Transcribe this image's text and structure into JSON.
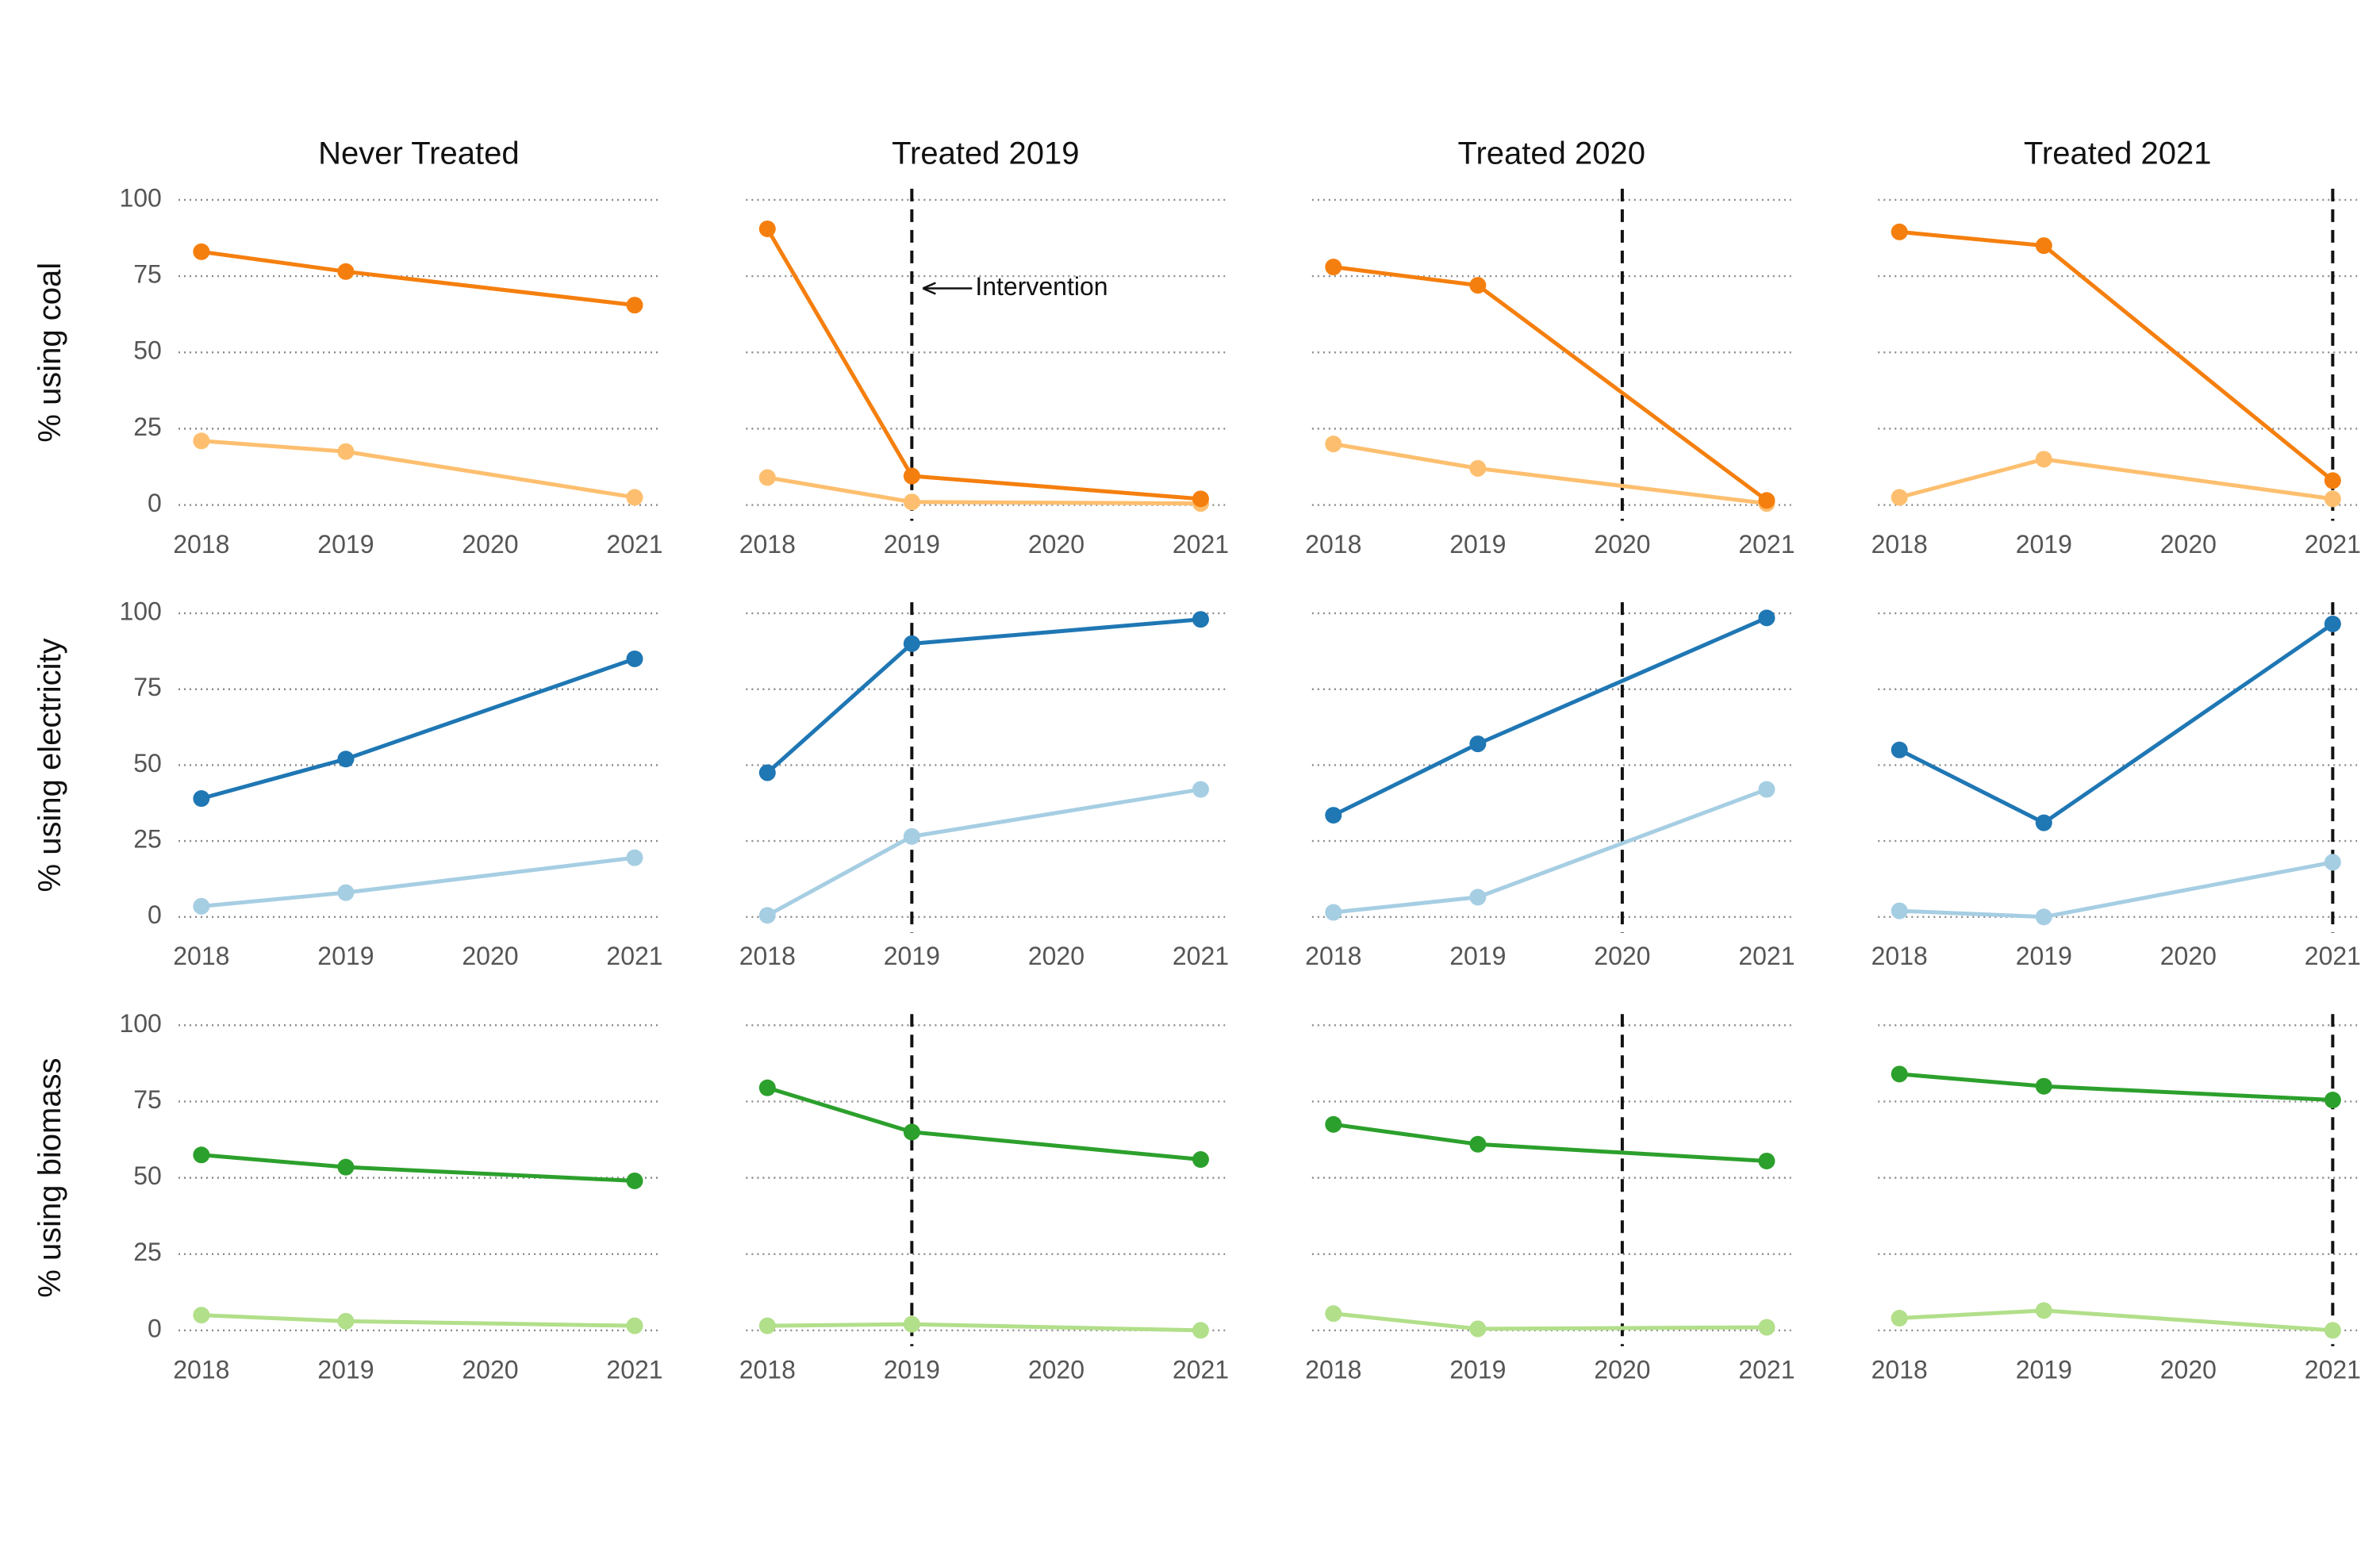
{
  "chart_data": {
    "type": "line",
    "layout": "faceted grid, 3 rows x 4 columns",
    "columns": [
      "Never Treated",
      "Treated 2019",
      "Treated 2020",
      "Treated 2021"
    ],
    "intervention_years": [
      null,
      2019,
      2020,
      2021
    ],
    "rows": [
      {
        "ylabel": "% using coal",
        "color_dark": "#f57f0e",
        "color_light": "#fdbf6f"
      },
      {
        "ylabel": "% using electricity",
        "color_dark": "#1f77b4",
        "color_light": "#a6cee3"
      },
      {
        "ylabel": "% using biomass",
        "color_dark": "#2ca02c",
        "color_light": "#b2df8a"
      }
    ],
    "x": [
      2018,
      2019,
      2020,
      2021
    ],
    "x_ticks": [
      "2018",
      "2019",
      "2020",
      "2021"
    ],
    "y_ticks": [
      "0",
      "25",
      "50",
      "75",
      "100"
    ],
    "ylim": [
      0,
      100
    ],
    "grid": "horizontal dotted",
    "annotation": {
      "text": "Intervention",
      "panel_row": 0,
      "panel_col": 1
    },
    "panels": [
      [
        {
          "dark": {
            "x": [
              2018,
              2019,
              2021
            ],
            "y": [
              83,
              76.5,
              65.5
            ]
          },
          "light": {
            "x": [
              2018,
              2019,
              2021
            ],
            "y": [
              21,
              17.5,
              2.5
            ]
          }
        },
        {
          "dark": {
            "x": [
              2018,
              2019,
              2021
            ],
            "y": [
              90.5,
              9.5,
              2
            ]
          },
          "light": {
            "x": [
              2018,
              2019,
              2021
            ],
            "y": [
              9,
              1,
              0.5
            ]
          }
        },
        {
          "dark": {
            "x": [
              2018,
              2019,
              2021
            ],
            "y": [
              78,
              72,
              1.5
            ]
          },
          "light": {
            "x": [
              2018,
              2019,
              2021
            ],
            "y": [
              20,
              12,
              0.5
            ]
          }
        },
        {
          "dark": {
            "x": [
              2018,
              2019,
              2021
            ],
            "y": [
              89.5,
              85,
              8
            ]
          },
          "light": {
            "x": [
              2018,
              2019,
              2021
            ],
            "y": [
              2.5,
              15,
              2
            ]
          }
        }
      ],
      [
        {
          "dark": {
            "x": [
              2018,
              2019,
              2021
            ],
            "y": [
              39,
              52,
              85
            ]
          },
          "light": {
            "x": [
              2018,
              2019,
              2021
            ],
            "y": [
              3.5,
              8,
              19.5
            ]
          }
        },
        {
          "dark": {
            "x": [
              2018,
              2019,
              2021
            ],
            "y": [
              47.5,
              90,
              98
            ]
          },
          "light": {
            "x": [
              2018,
              2019,
              2021
            ],
            "y": [
              0.5,
              26.5,
              42
            ]
          }
        },
        {
          "dark": {
            "x": [
              2018,
              2019,
              2021
            ],
            "y": [
              33.5,
              57,
              98.5
            ]
          },
          "light": {
            "x": [
              2018,
              2019,
              2021
            ],
            "y": [
              1.5,
              6.5,
              42
            ]
          }
        },
        {
          "dark": {
            "x": [
              2018,
              2019,
              2021
            ],
            "y": [
              55,
              31,
              96.5
            ]
          },
          "light": {
            "x": [
              2018,
              2019,
              2021
            ],
            "y": [
              2,
              0,
              18
            ]
          }
        }
      ],
      [
        {
          "dark": {
            "x": [
              2018,
              2019,
              2021
            ],
            "y": [
              57.5,
              53.5,
              49
            ]
          },
          "light": {
            "x": [
              2018,
              2019,
              2021
            ],
            "y": [
              5,
              3,
              1.5
            ]
          }
        },
        {
          "dark": {
            "x": [
              2018,
              2019,
              2021
            ],
            "y": [
              79.5,
              65,
              56
            ]
          },
          "light": {
            "x": [
              2018,
              2019,
              2021
            ],
            "y": [
              1.5,
              2,
              0
            ]
          }
        },
        {
          "dark": {
            "x": [
              2018,
              2019,
              2021
            ],
            "y": [
              67.5,
              61,
              55.5
            ]
          },
          "light": {
            "x": [
              2018,
              2019,
              2021
            ],
            "y": [
              5.5,
              0.5,
              1
            ]
          }
        },
        {
          "dark": {
            "x": [
              2018,
              2019,
              2021
            ],
            "y": [
              84,
              80,
              75.5
            ]
          },
          "light": {
            "x": [
              2018,
              2019,
              2021
            ],
            "y": [
              4,
              6.5,
              0
            ]
          }
        }
      ]
    ]
  }
}
